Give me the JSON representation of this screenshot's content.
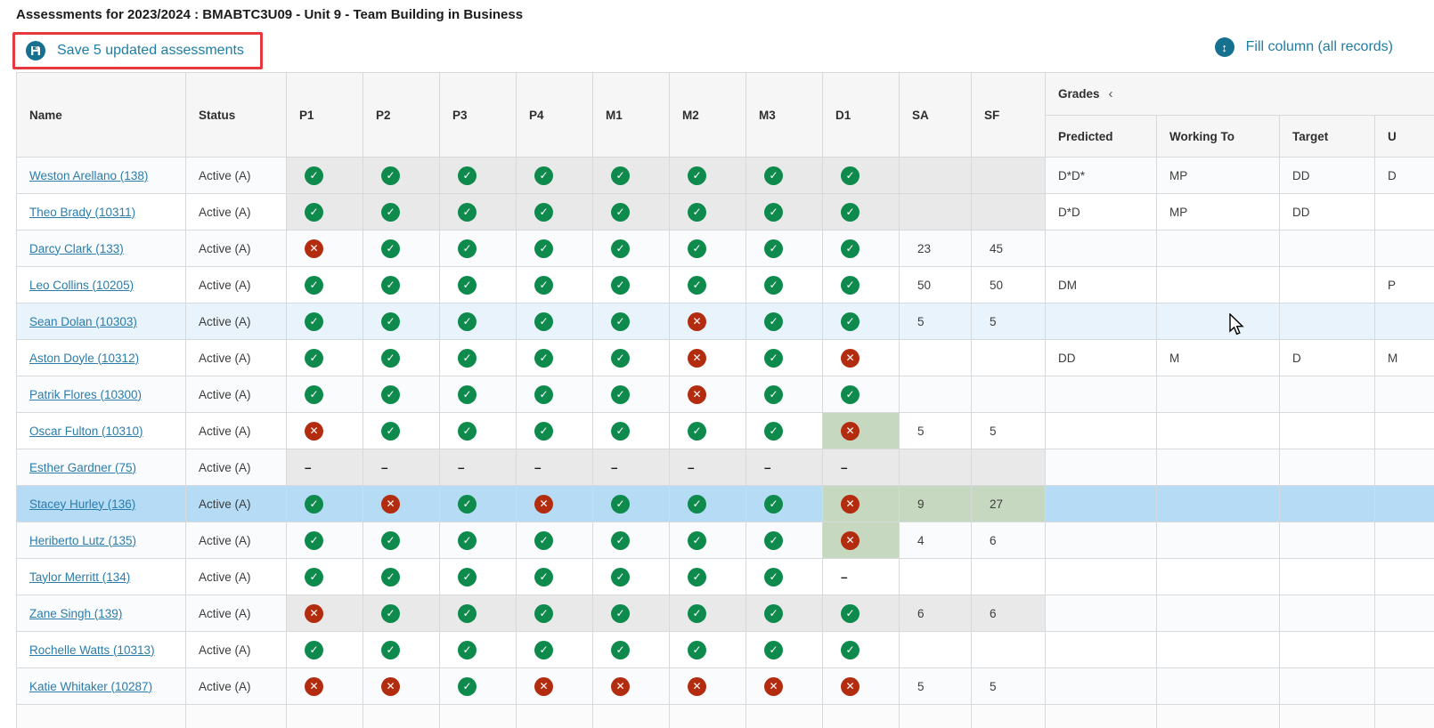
{
  "page": {
    "title": "Assessments for 2023/2024 : BMABTC3U09 - Unit 9 - Team Building in Business"
  },
  "toolbar": {
    "save_label": "Save 5 updated assessments",
    "fill_label": "Fill column (all records)"
  },
  "table": {
    "columns": [
      "Name",
      "Status",
      "P1",
      "P2",
      "P3",
      "P4",
      "M1",
      "M2",
      "M3",
      "D1",
      "SA",
      "SF"
    ],
    "grades_group": {
      "label": "Grades",
      "collapse_icon": "‹",
      "sub_columns": [
        "Predicted",
        "Working To",
        "Target",
        "U"
      ]
    },
    "rows": [
      {
        "name": "Weston Arellano (138)",
        "status": "Active (A)",
        "marks": [
          "check",
          "check",
          "check",
          "check",
          "check",
          "check",
          "check",
          "check"
        ],
        "marks_grey": true,
        "d1_green": false,
        "sa": "",
        "sf": "",
        "sa_green": false,
        "sf_green": false,
        "predicted": "D*D*",
        "working_to": "MP",
        "target": "DD",
        "u": "D",
        "highlight": ""
      },
      {
        "name": "Theo Brady (10311)",
        "status": "Active (A)",
        "marks": [
          "check",
          "check",
          "check",
          "check",
          "check",
          "check",
          "check",
          "check"
        ],
        "marks_grey": true,
        "d1_green": false,
        "sa": "",
        "sf": "",
        "sa_green": false,
        "sf_green": false,
        "predicted": "D*D",
        "working_to": "MP",
        "target": "DD",
        "u": "",
        "highlight": ""
      },
      {
        "name": "Darcy Clark (133)",
        "status": "Active (A)",
        "marks": [
          "cross",
          "check",
          "check",
          "check",
          "check",
          "check",
          "check",
          "check"
        ],
        "marks_grey": false,
        "d1_green": false,
        "sa": "23",
        "sf": "45",
        "sa_green": false,
        "sf_green": false,
        "predicted": "",
        "working_to": "",
        "target": "",
        "u": "",
        "highlight": ""
      },
      {
        "name": "Leo Collins (10205)",
        "status": "Active (A)",
        "marks": [
          "check",
          "check",
          "check",
          "check",
          "check",
          "check",
          "check",
          "check"
        ],
        "marks_grey": false,
        "d1_green": false,
        "sa": "50",
        "sf": "50",
        "sa_green": false,
        "sf_green": false,
        "predicted": "DM",
        "working_to": "",
        "target": "",
        "u": "P",
        "highlight": ""
      },
      {
        "name": "Sean Dolan (10303)",
        "status": "Active (A)",
        "marks": [
          "check",
          "check",
          "check",
          "check",
          "check",
          "cross",
          "check",
          "check"
        ],
        "marks_grey": false,
        "d1_green": false,
        "sa": "5",
        "sf": "5",
        "sa_green": false,
        "sf_green": false,
        "predicted": "",
        "working_to": "",
        "target": "",
        "u": "",
        "highlight": "hover"
      },
      {
        "name": "Aston Doyle (10312)",
        "status": "Active (A)",
        "marks": [
          "check",
          "check",
          "check",
          "check",
          "check",
          "cross",
          "check",
          "cross"
        ],
        "marks_grey": false,
        "d1_green": false,
        "sa": "",
        "sf": "",
        "sa_green": false,
        "sf_green": false,
        "predicted": "DD",
        "working_to": "M",
        "target": "D",
        "u": "M",
        "highlight": ""
      },
      {
        "name": "Patrik Flores (10300)",
        "status": "Active (A)",
        "marks": [
          "check",
          "check",
          "check",
          "check",
          "check",
          "cross",
          "check",
          "check"
        ],
        "marks_grey": false,
        "d1_green": false,
        "sa": "",
        "sf": "",
        "sa_green": false,
        "sf_green": false,
        "predicted": "",
        "working_to": "",
        "target": "",
        "u": "",
        "highlight": ""
      },
      {
        "name": "Oscar Fulton (10310)",
        "status": "Active (A)",
        "marks": [
          "cross",
          "check",
          "check",
          "check",
          "check",
          "check",
          "check",
          "cross"
        ],
        "marks_grey": false,
        "d1_green": true,
        "sa": "5",
        "sf": "5",
        "sa_green": false,
        "sf_green": false,
        "predicted": "",
        "working_to": "",
        "target": "",
        "u": "",
        "highlight": ""
      },
      {
        "name": "Esther Gardner (75)",
        "status": "Active (A)",
        "marks": [
          "dash",
          "dash",
          "dash",
          "dash",
          "dash",
          "dash",
          "dash",
          "dash"
        ],
        "marks_grey": true,
        "d1_green": false,
        "sa": "",
        "sf": "",
        "sa_green": false,
        "sf_green": false,
        "predicted": "",
        "working_to": "",
        "target": "",
        "u": "",
        "highlight": ""
      },
      {
        "name": "Stacey Hurley (136)",
        "status": "Active (A)",
        "marks": [
          "check",
          "cross",
          "check",
          "cross",
          "check",
          "check",
          "check",
          "cross"
        ],
        "marks_grey": false,
        "d1_green": true,
        "sa": "9",
        "sf": "27",
        "sa_green": true,
        "sf_green": true,
        "predicted": "",
        "working_to": "",
        "target": "",
        "u": "",
        "highlight": "selected"
      },
      {
        "name": "Heriberto Lutz (135)",
        "status": "Active (A)",
        "marks": [
          "check",
          "check",
          "check",
          "check",
          "check",
          "check",
          "check",
          "cross"
        ],
        "marks_grey": false,
        "d1_green": true,
        "sa": "4",
        "sf": "6",
        "sa_green": false,
        "sf_green": false,
        "predicted": "",
        "working_to": "",
        "target": "",
        "u": "",
        "highlight": ""
      },
      {
        "name": "Taylor Merritt (134)",
        "status": "Active (A)",
        "marks": [
          "check",
          "check",
          "check",
          "check",
          "check",
          "check",
          "check",
          "dash"
        ],
        "marks_grey": false,
        "d1_green": false,
        "sa": "",
        "sf": "",
        "sa_green": false,
        "sf_green": false,
        "predicted": "",
        "working_to": "",
        "target": "",
        "u": "",
        "highlight": ""
      },
      {
        "name": "Zane Singh (139)",
        "status": "Active (A)",
        "marks": [
          "cross",
          "check",
          "check",
          "check",
          "check",
          "check",
          "check",
          "check"
        ],
        "marks_grey": true,
        "d1_green": false,
        "sa": "6",
        "sf": "6",
        "sa_green": false,
        "sf_green": false,
        "predicted": "",
        "working_to": "",
        "target": "",
        "u": "",
        "highlight": ""
      },
      {
        "name": "Rochelle Watts (10313)",
        "status": "Active (A)",
        "marks": [
          "check",
          "check",
          "check",
          "check",
          "check",
          "check",
          "check",
          "check"
        ],
        "marks_grey": false,
        "d1_green": false,
        "sa": "",
        "sf": "",
        "sa_green": false,
        "sf_green": false,
        "predicted": "",
        "working_to": "",
        "target": "",
        "u": "",
        "highlight": ""
      },
      {
        "name": "Katie Whitaker (10287)",
        "status": "Active (A)",
        "marks": [
          "cross",
          "cross",
          "check",
          "cross",
          "cross",
          "cross",
          "cross",
          "cross"
        ],
        "marks_grey": false,
        "d1_green": false,
        "sa": "5",
        "sf": "5",
        "sa_green": false,
        "sf_green": false,
        "predicted": "",
        "working_to": "",
        "target": "",
        "u": "",
        "highlight": ""
      }
    ]
  },
  "colors": {
    "accent": "#1e7da4",
    "save-box-red": "#e5383f",
    "check-green": "#0e8a4c",
    "cross-red": "#b22d10",
    "cell-green": "#c6d9c0",
    "cell-grey": "#e9e9e9",
    "row-hover": "#e8f3fb",
    "row-selected": "#b5dbf5",
    "link": "#2a7cab"
  },
  "glyphs": {
    "check": "✓",
    "cross": "✕",
    "dash": "–",
    "updown": "↕"
  }
}
